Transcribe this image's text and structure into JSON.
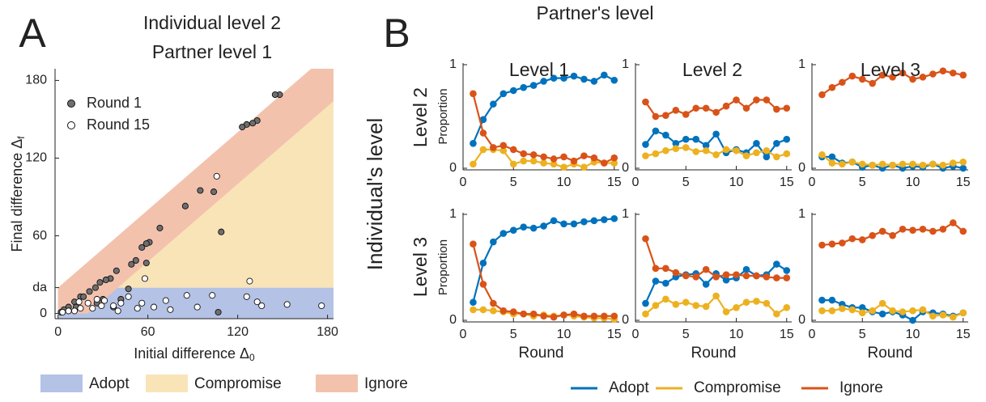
{
  "panel_labels": [
    "A",
    "B"
  ],
  "grid_b": {
    "title": "Partner's level",
    "row_title": "Individual's level",
    "columns": [
      "Level 1",
      "Level 2",
      "Level 3"
    ],
    "rows": [
      "Level 2",
      "Level 3"
    ]
  },
  "chart_data": [
    {
      "type": "scatter",
      "title": "Individual level 2",
      "subtitle": "Partner level 1",
      "xlabel": {
        "text": "Initial difference Δ",
        "sub": "0"
      },
      "ylabel": {
        "text": "Final difference Δ",
        "sub": "f"
      },
      "xlim": [
        -2,
        184
      ],
      "ylim": [
        -4,
        189
      ],
      "xticks": [
        0,
        60,
        120,
        180
      ],
      "yticks": [
        0,
        {
          "value": 20,
          "label": "da"
        },
        60,
        120,
        180
      ],
      "threshold": 20,
      "regions": [
        {
          "name": "Adopt",
          "color": "#b4c2e6"
        },
        {
          "name": "Compromise",
          "color": "#f9e4b8"
        },
        {
          "name": "Ignore",
          "color": "#f3c2ad"
        }
      ],
      "series": [
        {
          "name": "Round 1",
          "color": "#6e6e6e",
          "x": [
            148,
            145,
            133,
            130,
            126,
            123,
            104,
            95,
            85,
            68,
            61,
            59,
            56,
            52,
            49,
            39,
            35,
            32,
            28,
            25,
            21,
            15,
            11,
            7,
            4,
            2,
            109,
            59,
            47,
            37,
            30,
            26,
            17,
            107,
            42,
            12
          ],
          "values": [
            169,
            169,
            149,
            147,
            146,
            144,
            94,
            95,
            83,
            66,
            55,
            54,
            51,
            41,
            38,
            33,
            27,
            26,
            24,
            20,
            17,
            13,
            9,
            5,
            3,
            1,
            63,
            39,
            19,
            5,
            11,
            8,
            13,
            1,
            11,
            5
          ]
        },
        {
          "name": "Round 15",
          "color": "#ffffff",
          "x": [
            106,
            58,
            128,
            176,
            153,
            133,
            136,
            126,
            103,
            86,
            72,
            64,
            56,
            47,
            42,
            37,
            31,
            29,
            23,
            20,
            15,
            11,
            7,
            3,
            53,
            40,
            75,
            93,
            14,
            26
          ],
          "values": [
            106,
            27,
            25,
            6,
            7,
            9,
            6,
            13,
            14,
            14,
            10,
            5,
            8,
            13,
            8,
            6,
            10,
            6,
            4,
            8,
            4,
            2,
            2,
            1,
            4,
            2,
            3,
            5,
            9,
            11
          ]
        }
      ]
    },
    {
      "type": "line",
      "ylabel": "Proportion",
      "xlim": [
        0,
        15.5
      ],
      "ylim": [
        0,
        1
      ],
      "xticks": [
        0,
        5,
        10,
        15
      ],
      "yticks": [
        0,
        1
      ],
      "x": [
        1,
        2,
        3,
        4,
        5,
        6,
        7,
        8,
        9,
        10,
        11,
        12,
        13,
        14,
        15
      ],
      "series": [
        {
          "name": "Adopt",
          "color": "#0072bd",
          "values": [
            0.24,
            0.47,
            0.62,
            0.72,
            0.75,
            0.78,
            0.8,
            0.84,
            0.87,
            0.87,
            0.89,
            0.86,
            0.84,
            0.9,
            0.85
          ]
        },
        {
          "name": "Compromise",
          "color": "#edb120",
          "values": [
            0.04,
            0.18,
            0.18,
            0.17,
            0.04,
            0.07,
            0.07,
            0.05,
            0.04,
            0.01,
            0.04,
            0.01,
            0.06,
            0.05,
            0.05
          ]
        },
        {
          "name": "Ignore",
          "color": "#d95319",
          "values": [
            0.72,
            0.34,
            0.2,
            0.22,
            0.18,
            0.14,
            0.13,
            0.11,
            0.09,
            0.11,
            0.07,
            0.12,
            0.1,
            0.05,
            0.1
          ]
        }
      ]
    },
    {
      "type": "line",
      "xlim": [
        0,
        15.5
      ],
      "ylim": [
        0,
        1
      ],
      "xticks": [
        0,
        5,
        10,
        15
      ],
      "yticks": [
        0,
        1
      ],
      "x": [
        1,
        2,
        3,
        4,
        5,
        6,
        7,
        8,
        9,
        10,
        11,
        12,
        13,
        14,
        15
      ],
      "series": [
        {
          "name": "Adopt",
          "color": "#0072bd",
          "values": [
            0.23,
            0.36,
            0.32,
            0.24,
            0.28,
            0.28,
            0.22,
            0.33,
            0.15,
            0.18,
            0.15,
            0.24,
            0.11,
            0.24,
            0.28
          ]
        },
        {
          "name": "Compromise",
          "color": "#edb120",
          "values": [
            0.12,
            0.14,
            0.17,
            0.19,
            0.2,
            0.16,
            0.17,
            0.13,
            0.18,
            0.17,
            0.12,
            0.15,
            0.17,
            0.11,
            0.14
          ]
        },
        {
          "name": "Ignore",
          "color": "#d95319",
          "values": [
            0.64,
            0.5,
            0.51,
            0.56,
            0.52,
            0.58,
            0.58,
            0.54,
            0.6,
            0.66,
            0.58,
            0.66,
            0.66,
            0.57,
            0.58
          ]
        }
      ]
    },
    {
      "type": "line",
      "xlim": [
        0,
        15.5
      ],
      "ylim": [
        0,
        1
      ],
      "xticks": [
        0,
        5,
        10,
        15
      ],
      "yticks": [
        0,
        1
      ],
      "x": [
        1,
        2,
        3,
        4,
        5,
        6,
        7,
        8,
        9,
        10,
        11,
        12,
        13,
        14,
        15
      ],
      "series": [
        {
          "name": "Adopt",
          "color": "#0072bd",
          "values": [
            0.11,
            0.11,
            0.05,
            0.06,
            0.01,
            0.03,
            0.0,
            0.03,
            0.0,
            0.02,
            0.01,
            0.04,
            0.0,
            0.02,
            0.0
          ]
        },
        {
          "name": "Compromise",
          "color": "#edb120",
          "values": [
            0.13,
            0.05,
            0.04,
            0.06,
            0.04,
            0.03,
            0.04,
            0.03,
            0.04,
            0.04,
            0.03,
            0.04,
            0.03,
            0.05,
            0.06
          ]
        },
        {
          "name": "Ignore",
          "color": "#d95319",
          "values": [
            0.71,
            0.78,
            0.83,
            0.89,
            0.86,
            0.82,
            0.9,
            0.88,
            0.92,
            0.86,
            0.88,
            0.91,
            0.94,
            0.92,
            0.9
          ]
        }
      ]
    },
    {
      "type": "line",
      "xlabel": "Round",
      "ylabel": "Proportion",
      "xlim": [
        0,
        15.5
      ],
      "ylim": [
        0,
        1
      ],
      "xticks": [
        0,
        5,
        10,
        15
      ],
      "yticks": [
        0,
        1
      ],
      "x": [
        1,
        2,
        3,
        4,
        5,
        6,
        7,
        8,
        9,
        10,
        11,
        12,
        13,
        14,
        15
      ],
      "series": [
        {
          "name": "Adopt",
          "color": "#0072bd",
          "values": [
            0.17,
            0.54,
            0.74,
            0.82,
            0.85,
            0.88,
            0.87,
            0.89,
            0.94,
            0.91,
            0.91,
            0.93,
            0.94,
            0.95,
            0.96
          ]
        },
        {
          "name": "Compromise",
          "color": "#edb120",
          "values": [
            0.1,
            0.1,
            0.09,
            0.08,
            0.06,
            0.06,
            0.04,
            0.05,
            0.04,
            0.05,
            0.04,
            0.03,
            0.02,
            0.02,
            0.01
          ]
        },
        {
          "name": "Ignore",
          "color": "#d95319",
          "values": [
            0.72,
            0.34,
            0.16,
            0.09,
            0.08,
            0.06,
            0.06,
            0.04,
            0.03,
            0.05,
            0.06,
            0.04,
            0.04,
            0.04,
            0.04
          ]
        }
      ]
    },
    {
      "type": "line",
      "xlabel": "Round",
      "xlim": [
        0,
        15.5
      ],
      "ylim": [
        0,
        1
      ],
      "xticks": [
        0,
        5,
        10,
        15
      ],
      "yticks": [
        0,
        1
      ],
      "x": [
        1,
        2,
        3,
        4,
        5,
        6,
        7,
        8,
        9,
        10,
        11,
        12,
        13,
        14,
        15
      ],
      "series": [
        {
          "name": "Adopt",
          "color": "#0072bd",
          "values": [
            0.16,
            0.37,
            0.35,
            0.41,
            0.43,
            0.44,
            0.34,
            0.44,
            0.38,
            0.4,
            0.48,
            0.42,
            0.43,
            0.53,
            0.47
          ]
        },
        {
          "name": "Compromise",
          "color": "#edb120",
          "values": [
            0.06,
            0.14,
            0.2,
            0.15,
            0.17,
            0.14,
            0.13,
            0.23,
            0.08,
            0.12,
            0.17,
            0.18,
            0.16,
            0.06,
            0.12
          ]
        },
        {
          "name": "Ignore",
          "color": "#d95319",
          "values": [
            0.77,
            0.49,
            0.49,
            0.45,
            0.42,
            0.41,
            0.48,
            0.41,
            0.43,
            0.43,
            0.42,
            0.42,
            0.41,
            0.4,
            0.4
          ]
        }
      ]
    },
    {
      "type": "line",
      "xlabel": "Round",
      "xlim": [
        0,
        15.5
      ],
      "ylim": [
        0,
        1
      ],
      "xticks": [
        0,
        5,
        10,
        15
      ],
      "yticks": [
        0,
        1
      ],
      "x": [
        1,
        2,
        3,
        4,
        5,
        6,
        7,
        8,
        9,
        10,
        11,
        12,
        13,
        14,
        15
      ],
      "series": [
        {
          "name": "Adopt",
          "color": "#0072bd",
          "values": [
            0.19,
            0.19,
            0.15,
            0.12,
            0.12,
            0.08,
            0.06,
            0.08,
            0.05,
            0.0,
            0.08,
            0.07,
            0.06,
            0.04,
            0.07
          ]
        },
        {
          "name": "Compromise",
          "color": "#edb120",
          "values": [
            0.09,
            0.09,
            0.11,
            0.1,
            0.07,
            0.09,
            0.16,
            0.09,
            0.08,
            0.09,
            0.1,
            0.04,
            0.05,
            0.03,
            0.07
          ]
        },
        {
          "name": "Ignore",
          "color": "#d95319",
          "values": [
            0.71,
            0.72,
            0.73,
            0.77,
            0.76,
            0.8,
            0.84,
            0.8,
            0.86,
            0.85,
            0.86,
            0.84,
            0.86,
            0.92,
            0.84
          ]
        }
      ]
    }
  ]
}
